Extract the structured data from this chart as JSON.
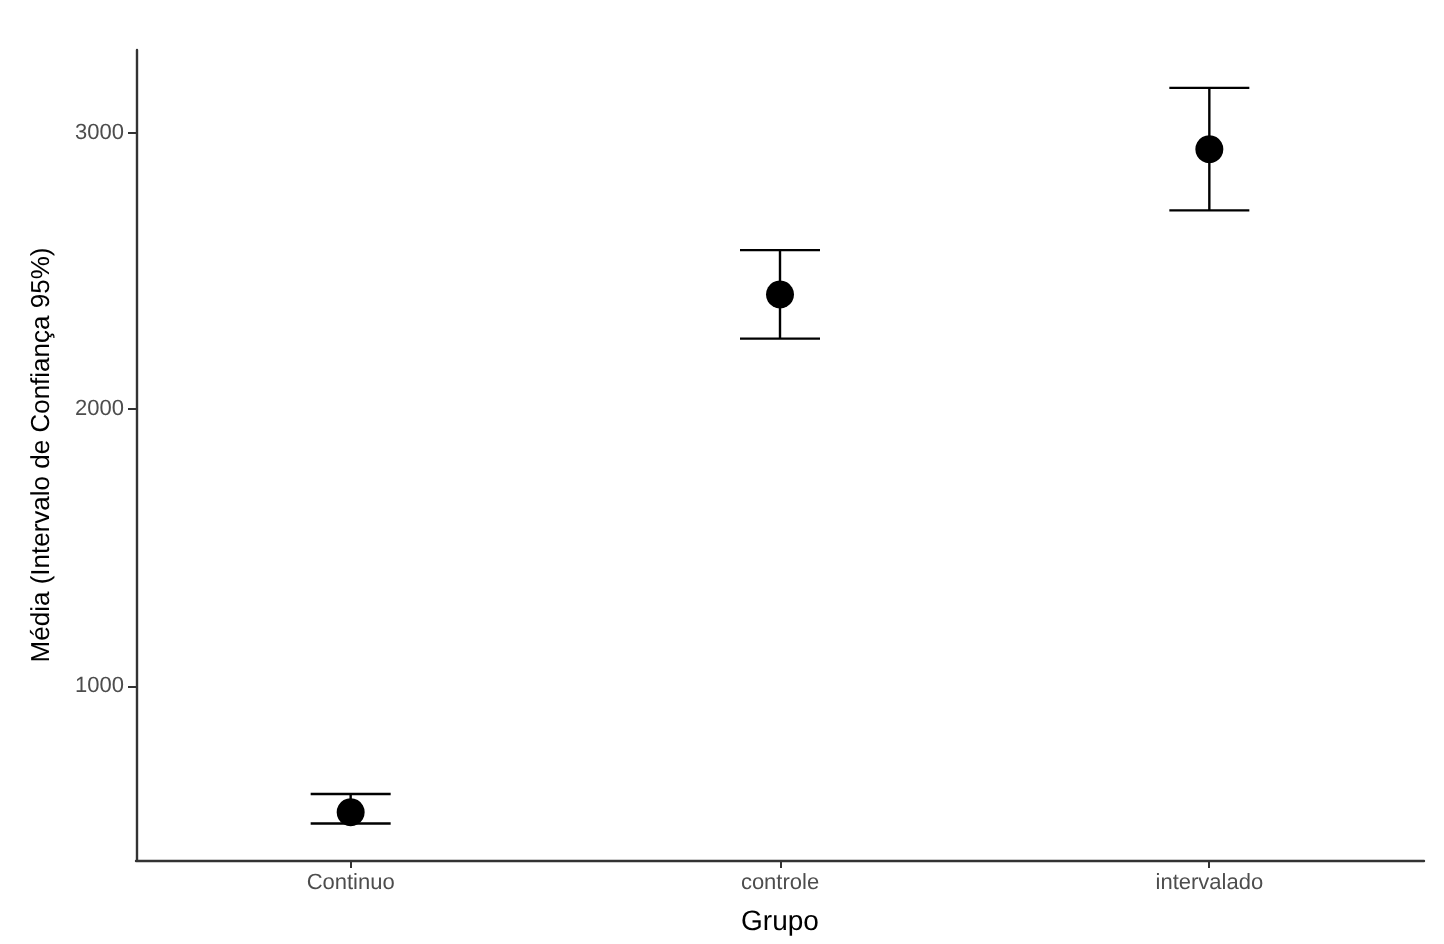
{
  "chart_data": {
    "type": "scatter",
    "xlabel": "Grupo",
    "ylabel": "Média (Intervalo de Confiança 95%)",
    "categories": [
      "Continuo",
      "controle",
      "intervalado"
    ],
    "values": [
      543,
      2416,
      2941
    ],
    "errors": [
      [
        502,
        609
      ],
      [
        2256,
        2576
      ],
      [
        2720,
        3163
      ]
    ],
    "color": "#000000",
    "marker": "circle",
    "ylim": [
      370,
      3300
    ],
    "yticks": [
      1000,
      2000,
      3000
    ]
  }
}
